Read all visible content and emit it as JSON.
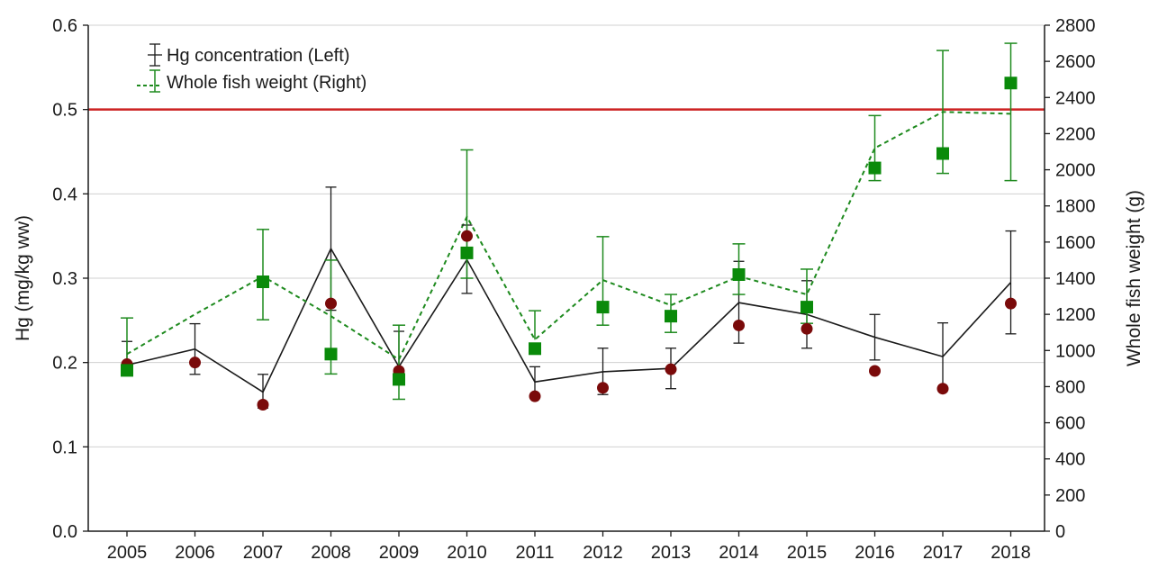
{
  "chart_data": {
    "type": "line",
    "x": [
      2005,
      2006,
      2007,
      2008,
      2009,
      2010,
      2011,
      2012,
      2013,
      2014,
      2015,
      2016,
      2017,
      2018
    ],
    "x_tick_labels": [
      "2005",
      "2006",
      "2007",
      "2008",
      "2009",
      "2010",
      "2011",
      "2012",
      "2013",
      "2014",
      "2015",
      "2016",
      "2017",
      "2018"
    ],
    "ylabel_left": "Hg (mg/kg ww)",
    "ylabel_right": "Whole fish weight (g)",
    "ylim_left": [
      0,
      0.6
    ],
    "ylim_right": [
      0,
      2800
    ],
    "left_ticks": [
      "0.0",
      "0.1",
      "0.2",
      "0.3",
      "0.4",
      "0.5",
      "0.6"
    ],
    "right_ticks": [
      "0",
      "200",
      "400",
      "600",
      "800",
      "1000",
      "1200",
      "1400",
      "1600",
      "1800",
      "2000",
      "2200",
      "2400",
      "2600",
      "2800"
    ],
    "grid": "horizontal",
    "legend_position": "top-left",
    "reference_line": {
      "y": 0.5,
      "axis": "left",
      "color": "#cc2222"
    },
    "series": [
      {
        "name": "Hg concentration (Left)",
        "axis": "left",
        "style": "solid",
        "color": "#1a1a1a",
        "values": [
          0.197,
          0.216,
          0.165,
          0.335,
          0.195,
          0.322,
          0.177,
          0.189,
          0.193,
          0.271,
          0.257,
          0.23,
          0.207,
          0.295
        ],
        "error_low": [
          0.185,
          0.186,
          0.146,
          0.262,
          0.186,
          0.282,
          0.162,
          0.162,
          0.169,
          0.223,
          0.217,
          0.203,
          0.168,
          0.234
        ],
        "error_high": [
          0.225,
          0.246,
          0.186,
          0.408,
          0.237,
          0.363,
          0.195,
          0.217,
          0.217,
          0.32,
          0.297,
          0.257,
          0.247,
          0.356
        ]
      },
      {
        "name": "Whole fish weight (Right)",
        "axis": "right",
        "style": "dashed",
        "color": "#1e8a1e",
        "values": [
          980,
          1200,
          1410,
          1190,
          950,
          1740,
          1060,
          1390,
          1250,
          1410,
          1310,
          2120,
          2320,
          2310
        ],
        "error_low": [
          860,
          null,
          1170,
          870,
          730,
          1400,
          null,
          1140,
          1100,
          1310,
          1150,
          1940,
          1980,
          1940
        ],
        "error_high": [
          1180,
          null,
          1670,
          1500,
          1140,
          2110,
          1220,
          1630,
          1310,
          1590,
          1450,
          2300,
          2660,
          2700
        ]
      },
      {
        "name": "",
        "axis": "left",
        "marker": "circle",
        "color": "#7a0a0a",
        "values": [
          0.198,
          0.2,
          0.15,
          0.27,
          0.19,
          0.35,
          0.16,
          0.17,
          0.192,
          0.244,
          0.24,
          0.19,
          0.169,
          0.27
        ]
      },
      {
        "name": "",
        "axis": "right",
        "marker": "square",
        "color": "#0a8a0a",
        "values": [
          890,
          null,
          1380,
          980,
          840,
          1540,
          1010,
          1240,
          1190,
          1420,
          1240,
          2010,
          2090,
          2480
        ]
      }
    ]
  }
}
